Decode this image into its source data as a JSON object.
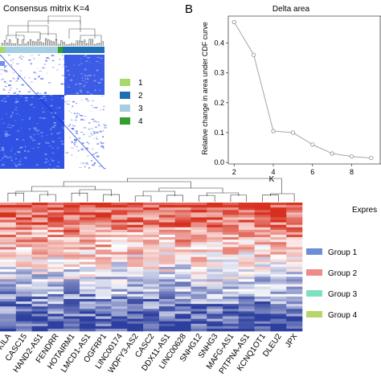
{
  "panel_a": {
    "title": "Consensus mitrix K=4",
    "legend": [
      {
        "label": "1",
        "color": "#a6d96a"
      },
      {
        "label": "2",
        "color": "#1f6fb4"
      },
      {
        "label": "3",
        "color": "#a6cee3"
      },
      {
        "label": "4",
        "color": "#33a02c"
      }
    ],
    "colors": {
      "matrix": "#1a3fe0",
      "matrix_light": "#dfe6ff"
    }
  },
  "panel_b": {
    "letter": "B",
    "chart_data": {
      "type": "line",
      "title": "Delta area",
      "xlabel": "K",
      "ylabel": "Relative change in area under CDF curve",
      "x": [
        2,
        3,
        4,
        5,
        6,
        7,
        8,
        9
      ],
      "y": [
        0.47,
        0.36,
        0.105,
        0.1,
        0.06,
        0.03,
        0.02,
        0.015
      ],
      "xticks": [
        "2",
        "4",
        "6",
        "8"
      ],
      "yticks": [
        "0.0",
        "0.1",
        "0.2",
        "0.3",
        "0.4"
      ],
      "xlim": [
        1.7,
        9.5
      ],
      "ylim": [
        -0.005,
        0.49
      ],
      "grid": false
    }
  },
  "panel_c": {
    "legend_title": "Expres",
    "groups": [
      {
        "label": "Group 1",
        "color": "#6b8fd6"
      },
      {
        "label": "Group 2",
        "color": "#ef8a8a"
      },
      {
        "label": "Group 3",
        "color": "#7fe0c0"
      },
      {
        "label": "Group 4",
        "color": "#b5d66a"
      }
    ],
    "genes": [
      "KILA",
      "CASC15",
      "HAND2-AS1",
      "FENDRR",
      "HOTAIRM1",
      "LMCD1-AS1",
      "OGFRP1",
      "LINC00174",
      "WDFY3-AS2",
      "CASC2",
      "DDX11-AS1",
      "LINC00628",
      "SNHG12",
      "SNHG3",
      "MAFG-AS1",
      "PITPNA-AS1",
      "KCNQ1OT1",
      "DLEU2",
      "JPX"
    ],
    "colors": {
      "high": "#d7301f",
      "mid": "#ffffff",
      "low": "#2c3e9e"
    }
  }
}
